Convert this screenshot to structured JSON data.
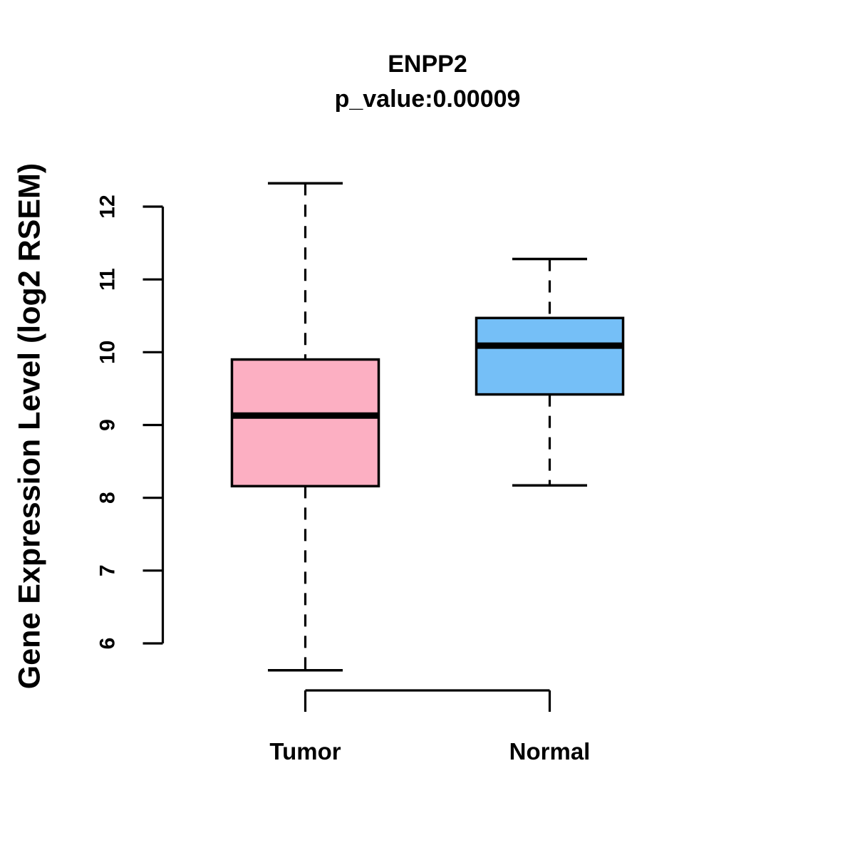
{
  "title": "ENPP2",
  "subtitle": "p_value:0.00009",
  "chart_data": {
    "type": "boxplot",
    "title": "ENPP2",
    "subtitle": "p_value:0.00009",
    "xlabel": "",
    "ylabel": "Gene Expression Level (log2 RSEM)",
    "ylim": [
      6,
      12
    ],
    "yticks": [
      6,
      7,
      8,
      9,
      10,
      11,
      12
    ],
    "categories": [
      "Tumor",
      "Normal"
    ],
    "series": [
      {
        "name": "Tumor",
        "color": "#FCAFC2",
        "whisker_low": 5.63,
        "q1": 8.16,
        "median": 9.13,
        "q3": 9.9,
        "whisker_high": 12.32
      },
      {
        "name": "Normal",
        "color": "#75BFF7",
        "whisker_low": 8.17,
        "q1": 9.42,
        "median": 10.09,
        "q3": 10.47,
        "whisker_high": 11.28
      }
    ],
    "grid": false,
    "outline_color": "#000000",
    "whisker_style": "dashed"
  }
}
